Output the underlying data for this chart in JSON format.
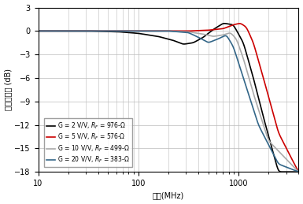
{
  "title": "",
  "xlabel": "频率(MHz)",
  "ylabel": "归一化增益 (dB)",
  "xmin": 10,
  "xmax": 4000,
  "ymin": -18,
  "ymax": 3,
  "yticks": [
    3,
    0,
    -3,
    -6,
    -9,
    -12,
    -15,
    -18
  ],
  "background_color": "#ffffff",
  "grid_color": "#bbbbbb",
  "legend_labels": [
    "G = 2 V/V, R_F = 976-Ω",
    "G = 5 V/V, R_F = 576-Ω",
    "G = 10 V/V, R_F = 499-Ω",
    "G = 20 V/V, R_F = 383-Ω"
  ],
  "legend_colors": [
    "#000000",
    "#cc0000",
    "#aaaaaa",
    "#336688"
  ],
  "curves": [
    {
      "color": "#000000",
      "points_log_f": [
        1.0,
        1.5,
        1.8,
        2.0,
        2.2,
        2.35,
        2.45,
        2.55,
        2.65,
        2.75,
        2.85,
        2.95,
        3.05,
        3.15,
        3.25,
        3.4,
        3.6
      ],
      "points_db": [
        0.0,
        0.0,
        -0.1,
        -0.3,
        -0.7,
        -1.2,
        -1.7,
        -1.5,
        -0.8,
        0.2,
        1.0,
        0.8,
        -1.5,
        -6.0,
        -11.0,
        -18.0,
        -18.0
      ]
    },
    {
      "color": "#cc0000",
      "points_log_f": [
        1.0,
        1.5,
        2.0,
        2.3,
        2.5,
        2.7,
        2.85,
        2.95,
        3.02,
        3.08,
        3.15,
        3.25,
        3.4,
        3.6
      ],
      "points_db": [
        0.0,
        0.0,
        0.0,
        0.0,
        0.0,
        0.1,
        0.3,
        0.8,
        1.0,
        0.5,
        -1.5,
        -6.0,
        -13.0,
        -18.0
      ]
    },
    {
      "color": "#aaaaaa",
      "points_log_f": [
        1.0,
        1.5,
        2.0,
        2.3,
        2.5,
        2.65,
        2.75,
        2.85,
        2.92,
        2.98,
        3.05,
        3.15,
        3.3,
        3.6
      ],
      "points_db": [
        0.0,
        0.0,
        0.0,
        0.0,
        -0.1,
        -0.4,
        -0.7,
        -0.5,
        -0.2,
        -1.0,
        -3.5,
        -8.0,
        -14.0,
        -18.0
      ]
    },
    {
      "color": "#336688",
      "points_log_f": [
        1.0,
        1.5,
        2.0,
        2.3,
        2.5,
        2.6,
        2.7,
        2.8,
        2.88,
        2.95,
        3.05,
        3.2,
        3.4,
        3.6
      ],
      "points_db": [
        0.0,
        0.0,
        0.0,
        0.0,
        -0.2,
        -0.8,
        -1.5,
        -1.0,
        -0.5,
        -2.0,
        -6.0,
        -12.0,
        -17.0,
        -18.0
      ]
    }
  ]
}
